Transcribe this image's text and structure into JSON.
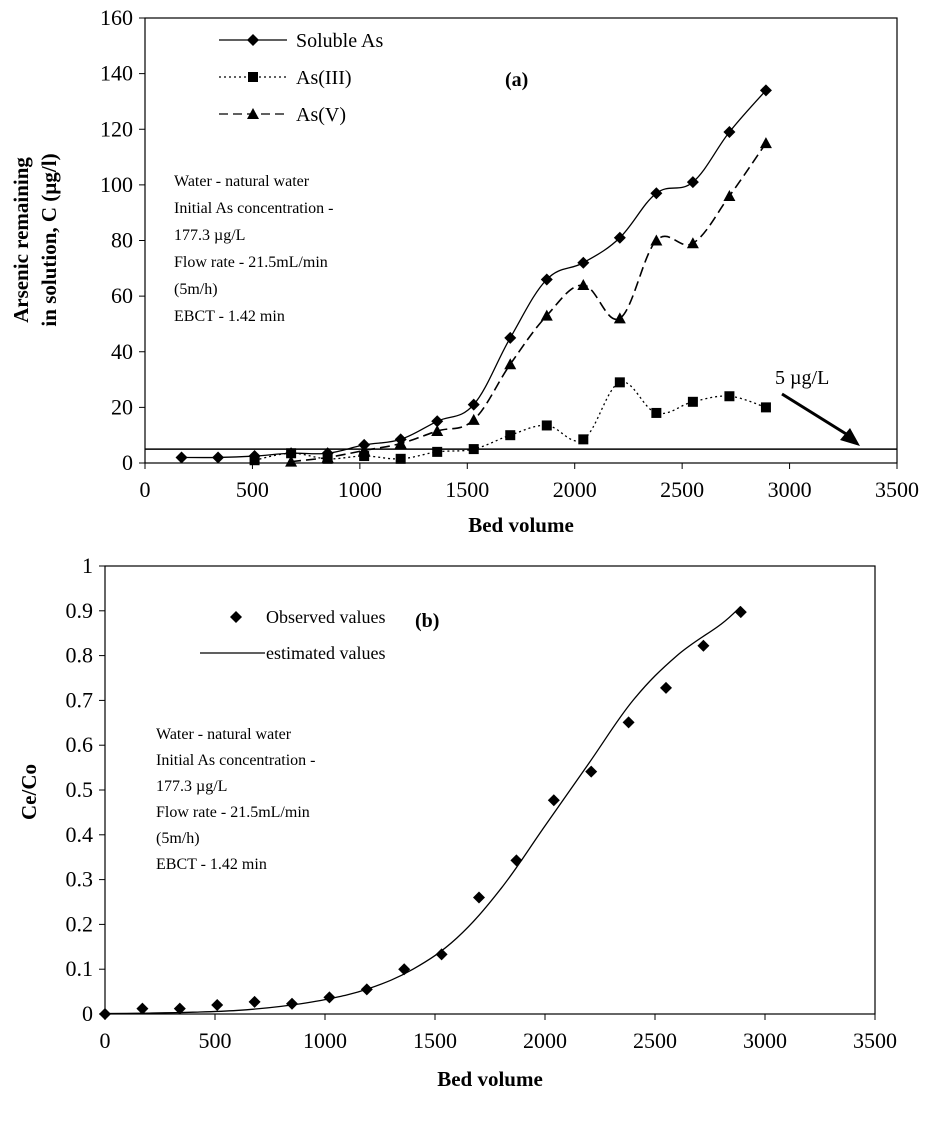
{
  "chart_data": [
    {
      "type": "line",
      "panel_label": "(a)",
      "xlabel": "Bed volume",
      "ylabel_lines": [
        "Arsenic remaining",
        "in solution, C (µg/l)"
      ],
      "xlim": [
        0,
        3500
      ],
      "ylim": [
        0,
        160
      ],
      "x_ticks": [
        0,
        500,
        1000,
        1500,
        2000,
        2500,
        3000,
        3500
      ],
      "y_ticks": [
        0,
        20,
        40,
        60,
        80,
        100,
        120,
        140,
        160
      ],
      "grid": false,
      "legend_position": "top-left",
      "series": [
        {
          "name": "Soluble As",
          "marker": "diamond",
          "line": "solid",
          "x": [
            170,
            340,
            510,
            680,
            850,
            1020,
            1190,
            1360,
            1530,
            1700,
            1870,
            2040,
            2210,
            2380,
            2550,
            2720,
            2890
          ],
          "y": [
            2,
            2,
            2.5,
            3.5,
            3.5,
            6.5,
            8.5,
            15,
            21,
            45,
            66,
            72,
            81,
            97,
            101,
            119,
            134
          ]
        },
        {
          "name": "As(III)",
          "marker": "square",
          "line": "dotted",
          "x": [
            510,
            680,
            850,
            1020,
            1190,
            1360,
            1530,
            1700,
            1870,
            2040,
            2210,
            2380,
            2550,
            2720,
            2890
          ],
          "y": [
            1,
            3.5,
            1.5,
            2.5,
            1.5,
            4,
            5,
            10,
            13.5,
            8.5,
            29,
            18,
            22,
            24,
            20
          ]
        },
        {
          "name": "As(V)",
          "marker": "triangle",
          "line": "dashed",
          "x": [
            680,
            850,
            1020,
            1190,
            1360,
            1530,
            1700,
            1870,
            2040,
            2210,
            2380,
            2550,
            2720,
            2890
          ],
          "y": [
            0.5,
            2,
            4.5,
            7,
            11.5,
            15.5,
            35.5,
            53,
            64,
            52,
            80,
            79,
            96,
            115
          ]
        }
      ],
      "reference_line": {
        "y": 5,
        "label": "5 µg/L"
      },
      "annotation_lines": [
        "Water - natural water",
        "Initial As concentration -",
        "177.3 µg/L",
        "Flow rate - 21.5mL/min",
        "(5m/h)",
        "EBCT - 1.42 min"
      ]
    },
    {
      "type": "scatter",
      "panel_label": "(b)",
      "xlabel": "Bed volume",
      "ylabel": "Ce/Co",
      "xlim": [
        0,
        3500
      ],
      "ylim": [
        0,
        1
      ],
      "x_ticks": [
        0,
        500,
        1000,
        1500,
        2000,
        2500,
        3000,
        3500
      ],
      "y_ticks": [
        0,
        0.1,
        0.2,
        0.3,
        0.4,
        0.5,
        0.6,
        0.7,
        0.8,
        0.9,
        1
      ],
      "grid": false,
      "legend_position": "top-left",
      "series": [
        {
          "name": "Observed values",
          "marker": "diamond",
          "line": "none",
          "x": [
            0,
            170,
            340,
            510,
            680,
            850,
            1020,
            1190,
            1360,
            1530,
            1700,
            1870,
            2040,
            2210,
            2380,
            2550,
            2720,
            2890
          ],
          "y": [
            0,
            0.012,
            0.012,
            0.02,
            0.027,
            0.023,
            0.037,
            0.055,
            0.1,
            0.133,
            0.26,
            0.343,
            0.477,
            0.541,
            0.651,
            0.728,
            0.822,
            0.897
          ]
        },
        {
          "name": "estimated values",
          "marker": "none",
          "line": "solid",
          "x": [
            0,
            200,
            400,
            600,
            800,
            1000,
            1200,
            1400,
            1600,
            1800,
            2000,
            2200,
            2400,
            2600,
            2800,
            2890
          ],
          "y": [
            0.001,
            0.002,
            0.004,
            0.008,
            0.017,
            0.032,
            0.057,
            0.1,
            0.17,
            0.28,
            0.42,
            0.56,
            0.7,
            0.8,
            0.87,
            0.91
          ]
        }
      ],
      "annotation_lines": [
        "Water - natural water",
        "Initial As concentration -",
        "177.3 µg/L",
        "Flow rate - 21.5mL/min",
        "(5m/h)",
        "EBCT - 1.42 min"
      ]
    }
  ]
}
